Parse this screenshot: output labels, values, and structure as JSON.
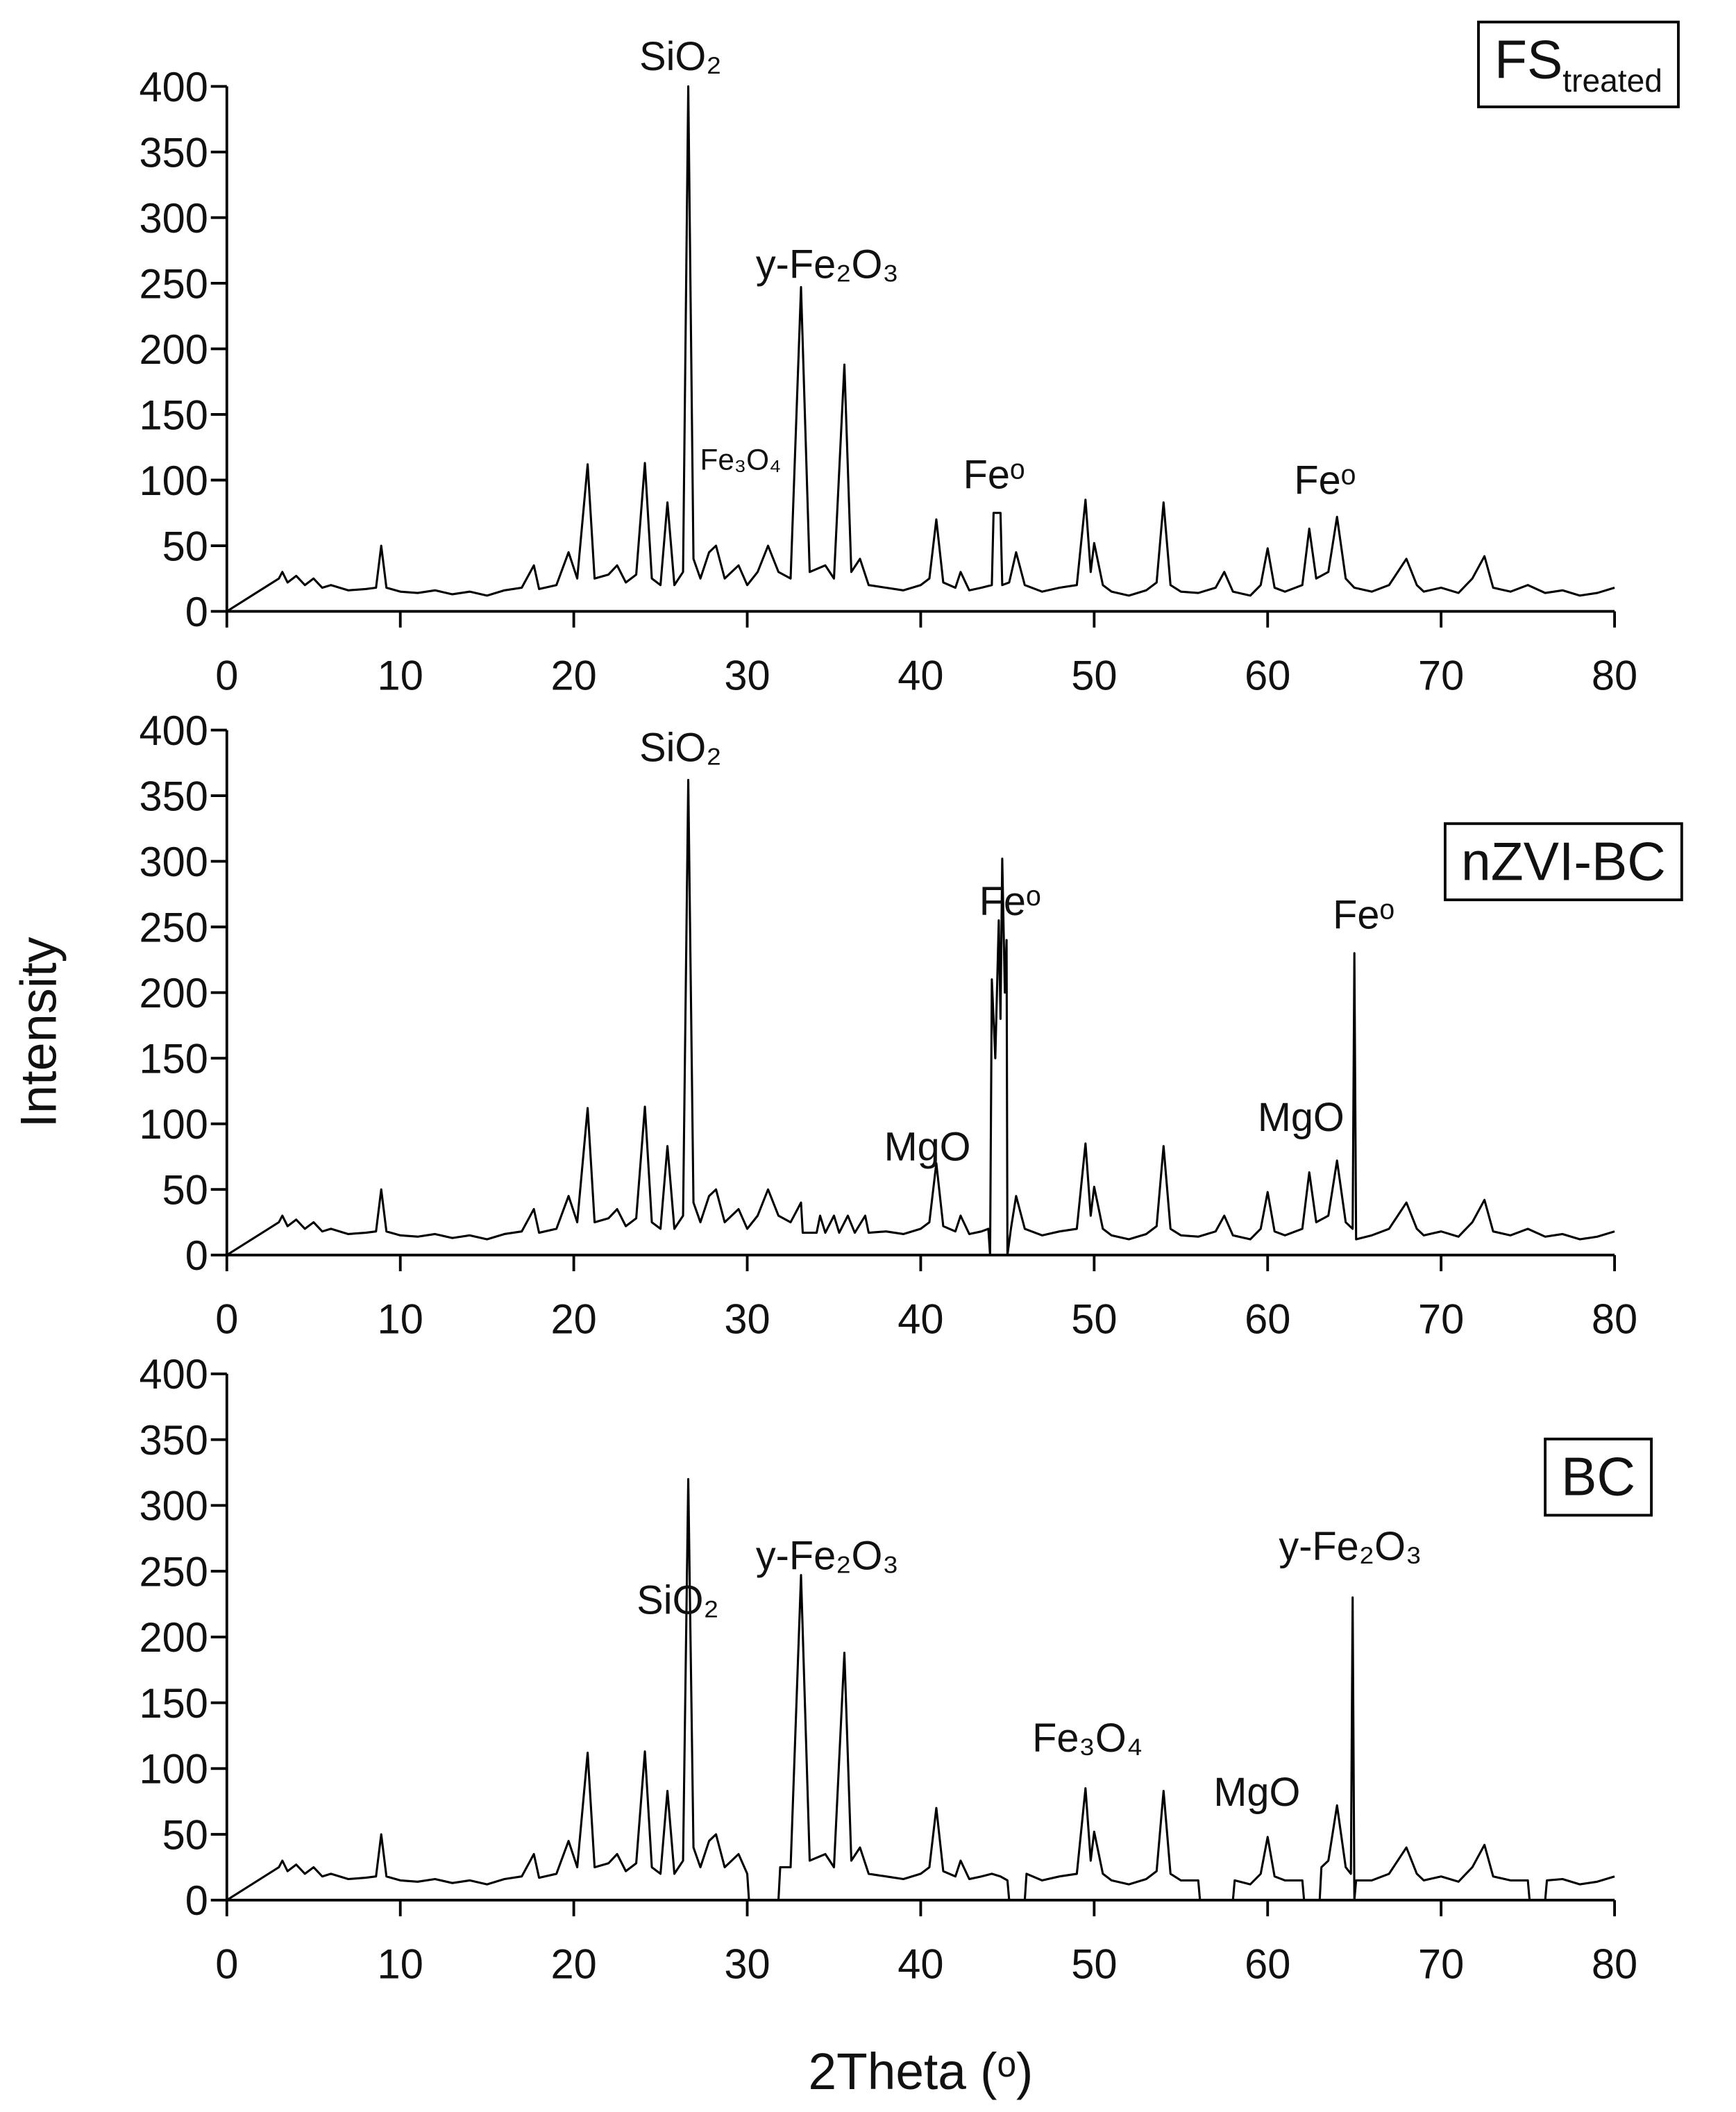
{
  "chart_data": [
    {
      "type": "line",
      "label": {
        "text": "FS",
        "sub": "treated"
      },
      "annotations": [
        "SiO₂",
        "y-Fe₂O₃",
        "Fe₃O₄",
        "Feᵒ",
        "Feᵒ"
      ],
      "xlim": [
        0,
        80
      ],
      "xticks": [
        0,
        10,
        20,
        30,
        40,
        50,
        60,
        70,
        80
      ],
      "ylim": [
        0,
        400
      ],
      "yticks": [
        0,
        50,
        100,
        150,
        200,
        250,
        300,
        350,
        400
      ],
      "x": [
        0,
        3,
        3.2,
        3.5,
        4,
        4.5,
        5,
        5.5,
        6,
        7,
        8,
        8.6,
        8.9,
        9.2,
        10,
        11,
        12,
        13,
        14,
        15,
        16,
        17,
        17.7,
        18,
        19,
        19.7,
        20.2,
        20.8,
        21.2,
        22,
        22.5,
        23,
        23.6,
        24.1,
        24.5,
        25,
        25.4,
        25.8,
        26.3,
        26.6,
        26.9,
        27.3,
        27.8,
        28.2,
        28.7,
        29.5,
        30,
        30.6,
        31.2,
        31.8,
        32.5,
        33.1,
        33.6,
        34.5,
        35,
        35.6,
        36,
        36.5,
        37,
        38,
        39,
        40,
        40.5,
        40.9,
        41.3,
        42,
        42.3,
        42.8,
        43.5,
        44.1,
        44.2,
        44.6,
        44.7,
        45.1,
        45.5,
        46,
        47,
        48,
        49,
        49.5,
        49.8,
        50,
        50.5,
        51,
        52,
        53,
        53.6,
        54,
        54.4,
        55,
        56,
        57,
        57.5,
        58,
        59,
        59.6,
        60,
        60.4,
        61,
        62,
        62.4,
        62.8,
        63.5,
        64,
        64.5,
        65,
        66,
        67,
        68,
        68.6,
        69,
        70,
        71,
        71.8,
        72.5,
        73,
        74,
        75,
        76,
        77,
        78,
        79,
        80
      ],
      "series": [
        {
          "color": "#000000",
          "values": [
            0,
            25,
            30,
            22,
            27,
            20,
            25,
            18,
            20,
            16,
            17,
            18,
            50,
            18,
            15,
            14,
            16,
            13,
            15,
            12,
            16,
            18,
            35,
            17,
            20,
            45,
            25,
            112,
            25,
            28,
            35,
            22,
            28,
            113,
            25,
            20,
            83,
            20,
            30,
            400,
            40,
            25,
            45,
            50,
            25,
            35,
            20,
            30,
            50,
            30,
            25,
            247,
            30,
            35,
            25,
            188,
            30,
            40,
            20,
            18,
            16,
            20,
            25,
            70,
            22,
            18,
            30,
            16,
            18,
            20,
            75,
            75,
            20,
            22,
            45,
            20,
            15,
            18,
            20,
            85,
            30,
            52,
            20,
            15,
            12,
            16,
            22,
            83,
            20,
            15,
            14,
            18,
            30,
            15,
            12,
            20,
            48,
            18,
            15,
            20,
            63,
            25,
            30,
            72,
            25,
            18,
            15,
            20,
            40,
            20,
            15,
            18,
            14,
            25,
            42,
            18,
            15,
            20,
            14,
            16,
            12,
            14,
            18
          ]
        }
      ]
    },
    {
      "type": "line",
      "label": {
        "text": "nZVI-BC"
      },
      "annotations": [
        "SiO₂",
        "Feᵒ",
        "Feᵒ",
        "MgO",
        "MgO"
      ],
      "xlim": [
        0,
        80
      ],
      "xticks": [
        0,
        10,
        20,
        30,
        40,
        50,
        60,
        70,
        80
      ],
      "ylim": [
        0,
        400
      ],
      "yticks": [
        0,
        50,
        100,
        150,
        200,
        250,
        300,
        350,
        400
      ],
      "x": [
        0,
        3,
        3.2,
        3.5,
        4,
        4.5,
        5,
        5.5,
        6,
        7,
        8,
        8.6,
        8.9,
        9.2,
        10,
        11,
        12,
        13,
        14,
        15,
        16,
        17,
        17.7,
        18,
        19,
        19.7,
        20.2,
        20.8,
        21.2,
        22,
        22.5,
        23,
        23.6,
        24.1,
        24.5,
        25,
        25.4,
        25.8,
        26.3,
        26.6,
        26.9,
        27.3,
        27.8,
        28.2,
        28.7,
        29.5,
        30,
        30.6,
        31.2,
        31.8,
        32.5,
        33.1,
        33.2,
        34,
        34.2,
        34.5,
        35,
        35.3,
        35.8,
        36.2,
        36.8,
        37,
        38,
        39,
        40,
        40.5,
        40.9,
        41.3,
        42,
        42.3,
        42.8,
        43.5,
        43.9,
        44,
        44.1,
        44.3,
        44.5,
        44.6,
        44.7,
        44.85,
        44.95,
        45,
        45.2,
        45.5,
        46,
        47,
        48,
        49,
        49.5,
        49.8,
        50,
        50.5,
        51,
        52,
        53,
        53.6,
        54,
        54.4,
        55,
        56,
        57,
        57.5,
        58,
        59,
        59.6,
        60,
        60.4,
        61,
        62,
        62.4,
        62.8,
        63.5,
        64,
        64.5,
        64.9,
        65,
        65.1,
        66,
        67,
        68,
        68.6,
        69,
        70,
        71,
        71.8,
        72.5,
        73,
        74,
        75,
        76,
        77,
        78,
        79,
        80
      ],
      "series": [
        {
          "color": "#000000",
          "values": [
            0,
            25,
            30,
            22,
            27,
            20,
            25,
            18,
            20,
            16,
            17,
            18,
            50,
            18,
            15,
            14,
            16,
            13,
            15,
            12,
            16,
            18,
            35,
            17,
            20,
            45,
            25,
            112,
            25,
            28,
            35,
            22,
            28,
            113,
            25,
            20,
            83,
            20,
            30,
            362,
            40,
            25,
            45,
            50,
            25,
            35,
            20,
            30,
            50,
            30,
            25,
            40,
            17,
            17,
            30,
            17,
            30,
            17,
            30,
            17,
            30,
            17,
            18,
            16,
            20,
            25,
            70,
            22,
            18,
            30,
            16,
            18,
            20,
            0,
            210,
            150,
            255,
            180,
            302,
            200,
            240,
            0,
            20,
            45,
            20,
            15,
            18,
            20,
            85,
            30,
            52,
            20,
            15,
            12,
            16,
            22,
            83,
            20,
            15,
            14,
            18,
            30,
            15,
            12,
            20,
            48,
            18,
            15,
            20,
            63,
            25,
            30,
            72,
            25,
            20,
            230,
            12,
            15,
            20,
            40,
            20,
            15,
            18,
            14,
            25,
            42,
            18,
            15,
            20,
            14,
            16,
            12,
            14,
            18
          ]
        }
      ]
    },
    {
      "type": "line",
      "label": {
        "text": "BC"
      },
      "annotations": [
        "y-Fe₂O₃",
        "SiO₂",
        "y-Fe₂O₃",
        "Fe₃O₄",
        "MgO"
      ],
      "xlim": [
        0,
        80
      ],
      "xticks": [
        0,
        10,
        20,
        30,
        40,
        50,
        60,
        70,
        80
      ],
      "ylim": [
        0,
        400
      ],
      "yticks": [
        0,
        50,
        100,
        150,
        200,
        250,
        300,
        350,
        400
      ],
      "x": [
        0,
        3,
        3.2,
        3.5,
        4,
        4.5,
        5,
        5.5,
        6,
        7,
        8,
        8.6,
        8.9,
        9.2,
        10,
        11,
        12,
        13,
        14,
        15,
        16,
        17,
        17.7,
        18,
        19,
        19.7,
        20.2,
        20.8,
        21.2,
        22,
        22.5,
        23,
        23.6,
        24.1,
        24.5,
        25,
        25.4,
        25.8,
        26.3,
        26.6,
        26.9,
        27.3,
        27.8,
        28.2,
        28.7,
        29.5,
        30,
        30.1,
        31.8,
        31.9,
        32.5,
        33.1,
        33.6,
        34.5,
        35,
        35.6,
        36,
        36.5,
        37,
        38,
        39,
        40,
        40.5,
        40.9,
        41.3,
        42,
        42.3,
        42.8,
        43.5,
        44.1,
        44.6,
        45,
        45.1,
        46,
        46.1,
        47,
        48,
        49,
        49.5,
        49.8,
        50,
        50.5,
        51,
        52,
        53,
        53.6,
        54,
        54.4,
        55,
        56,
        56.1,
        58,
        58.1,
        59,
        59.6,
        60,
        60.4,
        61,
        62,
        62.1,
        63,
        63.1,
        63.5,
        64,
        64.5,
        64.8,
        64.9,
        65,
        65.1,
        66,
        67,
        68,
        68.6,
        69,
        70,
        71,
        71.8,
        72.5,
        73,
        74,
        75,
        75.1,
        76,
        76.1,
        77,
        78,
        79,
        80
      ],
      "series": [
        {
          "color": "#000000",
          "values": [
            0,
            25,
            30,
            22,
            27,
            20,
            25,
            18,
            20,
            16,
            17,
            18,
            50,
            18,
            15,
            14,
            16,
            13,
            15,
            12,
            16,
            18,
            35,
            17,
            20,
            45,
            25,
            112,
            25,
            28,
            35,
            22,
            28,
            113,
            25,
            20,
            83,
            20,
            30,
            320,
            40,
            25,
            45,
            50,
            25,
            35,
            20,
            0,
            0,
            25,
            25,
            247,
            30,
            35,
            25,
            188,
            30,
            40,
            20,
            18,
            16,
            20,
            25,
            70,
            22,
            18,
            30,
            16,
            18,
            20,
            18,
            15,
            0,
            0,
            20,
            15,
            18,
            20,
            85,
            30,
            52,
            20,
            15,
            12,
            16,
            22,
            83,
            20,
            15,
            15,
            0,
            0,
            15,
            12,
            20,
            48,
            18,
            15,
            15,
            0,
            0,
            25,
            30,
            72,
            25,
            20,
            230,
            0,
            15,
            15,
            20,
            40,
            20,
            15,
            18,
            14,
            25,
            42,
            18,
            15,
            15,
            0,
            0,
            15,
            16,
            12,
            14,
            18
          ]
        }
      ]
    }
  ],
  "y_label": "Intensity",
  "x_label": "2Theta (ᵒ)"
}
